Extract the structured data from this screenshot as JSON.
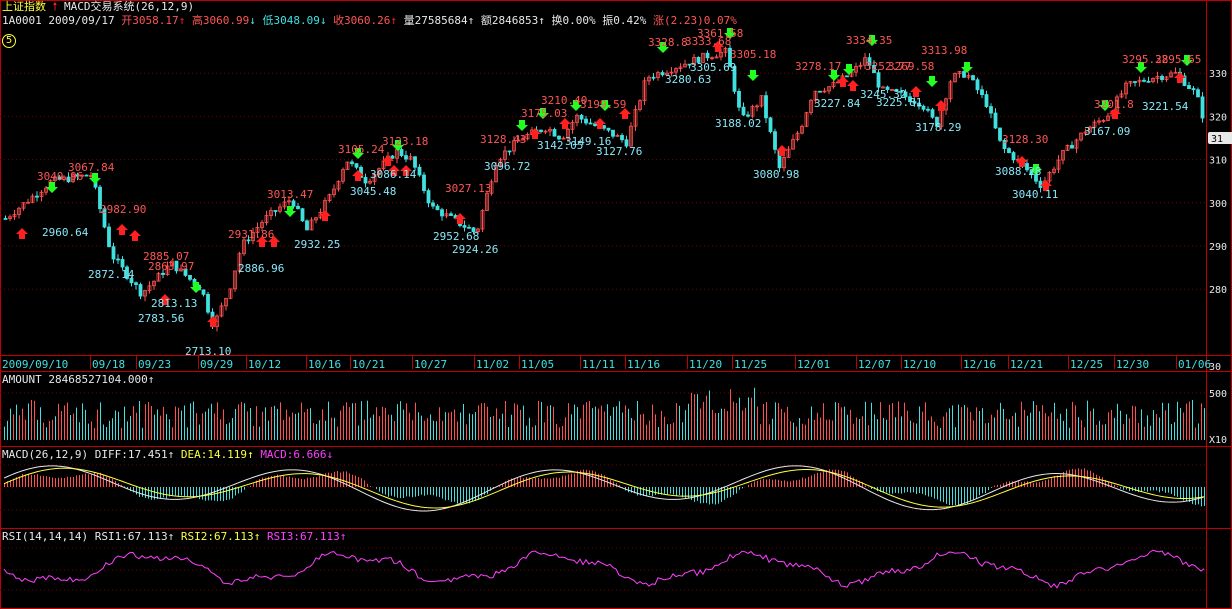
{
  "colors": {
    "background": "#000000",
    "frame": "#c00000",
    "grid": "#7a0000",
    "up": "#ff5050",
    "down": "#40e0e0",
    "label_high": "#ff5555",
    "label_low": "#88e8f8",
    "yellow": "#ffff40",
    "magenta": "#ff40ff",
    "white": "#e8e8e8",
    "arrow_up": "#ff2020",
    "arrow_down": "#20ff20"
  },
  "header": {
    "index_name": "上证指数",
    "strategy_icon": "red-up-arrow-icon",
    "strategy": "MACD交易系统(26,12,9)",
    "code": "1A0001",
    "date": "2009/09/17",
    "open": "开3058.17",
    "high": "高3060.99",
    "low": "低3048.09",
    "close": "收3060.26",
    "volume": "量27585684",
    "amount": "额2846853",
    "turnover": "换0.00%",
    "amplitude": "振0.42%",
    "change": "涨(2.23)0.07%",
    "period_badge": "5"
  },
  "main_chart": {
    "type": "candlestick",
    "y_axis_labels": [
      "330",
      "320",
      "310",
      "300",
      "290",
      "280"
    ],
    "current_price_badge": "31",
    "x_axis_labels": [
      "2009/09/10",
      "09/18",
      "09/23",
      "09/29",
      "10/12",
      "10/16",
      "10/21",
      "10/27",
      "11/02",
      "11/05",
      "11/11",
      "11/16",
      "11/20",
      "11/25",
      "12/01",
      "12/07",
      "12/10",
      "12/16",
      "12/21",
      "12/25",
      "12/30",
      "01/06"
    ],
    "high_labels": [
      {
        "text": "3049.96"
      },
      {
        "text": "3067.84"
      },
      {
        "text": "2982.90"
      },
      {
        "text": "2885.07"
      },
      {
        "text": "2863.97"
      },
      {
        "text": "2931.86"
      },
      {
        "text": "3013.47"
      },
      {
        "text": "3105.24"
      },
      {
        "text": "3123.18"
      },
      {
        "text": "3027.13"
      },
      {
        "text": "3128.43"
      },
      {
        "text": "3175.03"
      },
      {
        "text": "3210.40"
      },
      {
        "text": "3199.59"
      },
      {
        "text": "3328.8"
      },
      {
        "text": "3333.68"
      },
      {
        "text": "3361.58"
      },
      {
        "text": "3305.18"
      },
      {
        "text": "3278.17"
      },
      {
        "text": "3334.35"
      },
      {
        "text": "3252.77"
      },
      {
        "text": "3269.58"
      },
      {
        "text": "3313.98"
      },
      {
        "text": "3128.30"
      },
      {
        "text": "3201.8"
      },
      {
        "text": "3295.28"
      },
      {
        "text": "3295.65"
      }
    ],
    "low_labels": [
      {
        "text": "2960.64"
      },
      {
        "text": "2872.14"
      },
      {
        "text": "2783.56"
      },
      {
        "text": "2813.13"
      },
      {
        "text": "2713.10"
      },
      {
        "text": "2886.96"
      },
      {
        "text": "2932.25"
      },
      {
        "text": "3045.48"
      },
      {
        "text": "3086.14"
      },
      {
        "text": "2952.68"
      },
      {
        "text": "2924.26"
      },
      {
        "text": "3096.72"
      },
      {
        "text": "3142.05"
      },
      {
        "text": "3149.16"
      },
      {
        "text": "3127.76"
      },
      {
        "text": "3280.63"
      },
      {
        "text": "3305.69"
      },
      {
        "text": "3188.02"
      },
      {
        "text": "3080.98"
      },
      {
        "text": "3227.84"
      },
      {
        "text": "3245.32"
      },
      {
        "text": "3225.81"
      },
      {
        "text": "3178.29"
      },
      {
        "text": "3088.28"
      },
      {
        "text": "3040.11"
      },
      {
        "text": "3167.09"
      },
      {
        "text": "3221.54"
      }
    ]
  },
  "amount_panel": {
    "label": "AMOUNT 28468527104.000",
    "y_axis_labels": [
      "500",
      "X10"
    ]
  },
  "macd_panel": {
    "title": "MACD(26,12,9)",
    "diff": "DIFF:17.451",
    "dea": "DEA:14.119",
    "macd": "MACD:6.666"
  },
  "rsi_panel": {
    "title": "RSI(14,14,14)",
    "rsi1": "RSI1:67.113",
    "rsi2": "RSI2:67.113",
    "rsi3": "RSI3:67.113"
  },
  "right_axis_top": "30"
}
